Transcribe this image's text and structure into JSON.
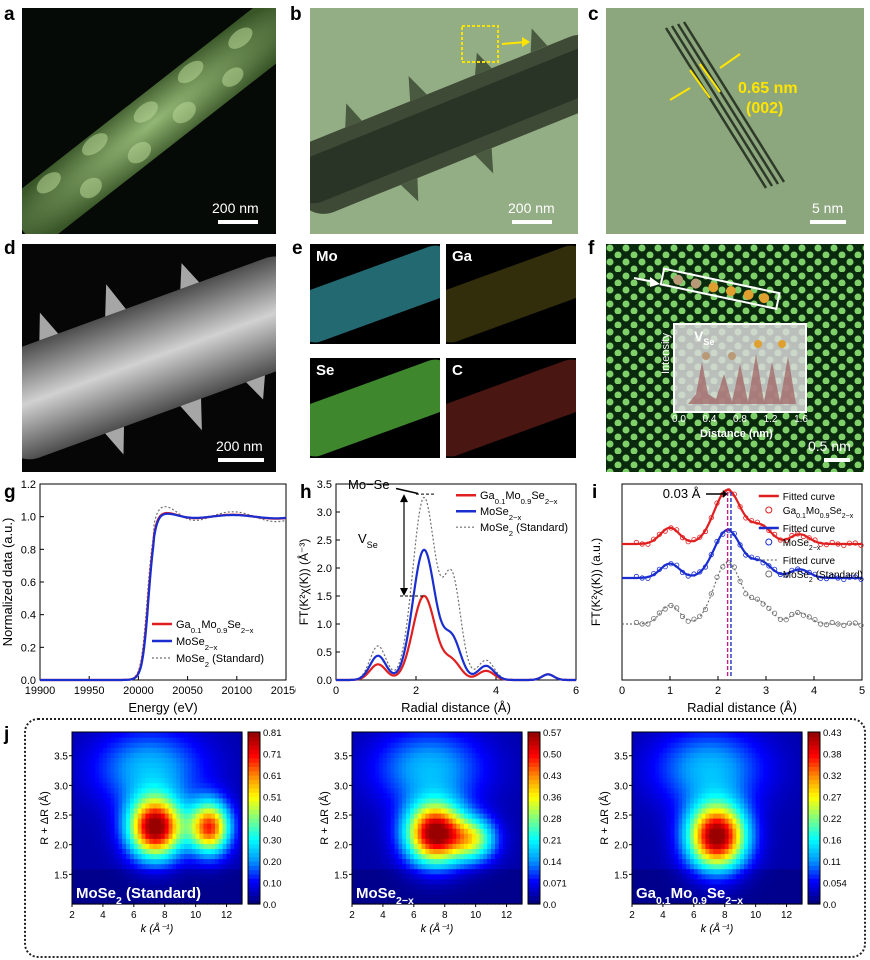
{
  "panel_labels": [
    "a",
    "b",
    "c",
    "d",
    "e",
    "f",
    "g",
    "h",
    "i",
    "j"
  ],
  "scalebars": {
    "a": "200 nm",
    "b": "200 nm",
    "c": "5 nm",
    "d": "200 nm",
    "f": "0.5 nm"
  },
  "panel_c": {
    "spacing": "0.65 nm",
    "plane": "(002)"
  },
  "panel_e": {
    "elements": [
      "Mo",
      "Ga",
      "Se",
      "C"
    ],
    "colors": [
      "#3fbfd0",
      "#c8b830",
      "#58c040",
      "#d04030"
    ]
  },
  "panel_f": {
    "inset_label": "V",
    "inset_sub": "Se",
    "ylabel": "Intensity",
    "xlabel": "Distance (nm)",
    "ticks": [
      "0.0",
      "0.4",
      "0.8",
      "1.2",
      "1.6"
    ]
  },
  "colors": {
    "ga": "#e02020",
    "mose2x": "#1a2ed0",
    "standard": "#707070"
  },
  "chart_g": {
    "type": "line",
    "xlabel": "Energy (eV)",
    "ylabel": "Normalized data (a.u.)",
    "xlim": [
      19900,
      20150
    ],
    "ylim": [
      0,
      1.2
    ],
    "xticks": [
      "19900",
      "19950",
      "20000",
      "20050",
      "20100",
      "20150"
    ],
    "yticks": [
      "0.0",
      "0.2",
      "0.4",
      "0.6",
      "0.8",
      "1.0",
      "1.2"
    ],
    "legend": [
      {
        "name": "Ga",
        "sub": "0.1",
        "name2": "Mo",
        "sub2": "0.9",
        "name3": "Se",
        "sub3": "2−x"
      },
      {
        "name": "MoSe",
        "sub": "2−x"
      },
      {
        "name": "MoSe",
        "sub": "2",
        "tail": " (Standard)"
      }
    ]
  },
  "chart_h": {
    "type": "line",
    "xlabel": "Radial distance (Å)",
    "ylabel": "FT(K²χ(K)) (Å⁻³)",
    "xlim": [
      0,
      6
    ],
    "ylim": [
      0,
      3.5
    ],
    "xticks": [
      "0",
      "2",
      "4",
      "6"
    ],
    "yticks": [
      "0.0",
      "0.5",
      "1.0",
      "1.5",
      "2.0",
      "2.5",
      "3.0",
      "3.5"
    ],
    "annot_bond": "Mo−Se",
    "annot_vac": "V",
    "annot_vac_sub": "Se"
  },
  "chart_i": {
    "type": "line",
    "xlabel": "Radial distance (Å)",
    "ylabel": "FT(K²χ(K)) (a.u.)",
    "xlim": [
      0,
      5
    ],
    "xticks": [
      "0",
      "1",
      "2",
      "3",
      "4",
      "5"
    ],
    "shift": "0.03 Å",
    "legend": [
      {
        "fit": "Fitted curve",
        "name": "Ga",
        "sub": "0.1",
        "name2": "Mo",
        "sub2": "0.9",
        "name3": "Se",
        "sub3": "2−x"
      },
      {
        "fit": "Fitted curve",
        "name": "MoSe",
        "sub": "2−x"
      },
      {
        "fit": "Fitted curve",
        "name": "MoSe",
        "sub": "2",
        "tail": " (Standard)"
      }
    ]
  },
  "chart_j": [
    {
      "type": "heatmap",
      "title": "MoSe",
      "title_sub": "2",
      "title_tail": " (Standard)",
      "colorbar": [
        "0.81",
        "0.71",
        "0.61",
        "0.51",
        "0.40",
        "0.30",
        "0.20",
        "0.10",
        "0.0"
      ]
    },
    {
      "type": "heatmap",
      "title": "MoSe",
      "title_sub": "2−x",
      "title_tail": "",
      "colorbar": [
        "0.57",
        "0.50",
        "0.43",
        "0.36",
        "0.28",
        "0.21",
        "0.14",
        "0.071",
        "0.0"
      ]
    },
    {
      "type": "heatmap",
      "title": "Ga",
      "title_sub": "0.1",
      "title2": "Mo",
      "title2_sub": "0.9",
      "title3": "Se",
      "title3_sub": "2−x",
      "colorbar": [
        "0.43",
        "0.38",
        "0.32",
        "0.27",
        "0.22",
        "0.16",
        "0.11",
        "0.054",
        "0.0"
      ]
    }
  ],
  "chart_j_axes": {
    "xlabel": "k (Å⁻¹)",
    "ylabel": "R + ΔR (Å)",
    "xticks": [
      "2",
      "4",
      "6",
      "8",
      "10",
      "12"
    ],
    "yticks": [
      "1.5",
      "2.0",
      "2.5",
      "3.0",
      "3.5"
    ]
  }
}
